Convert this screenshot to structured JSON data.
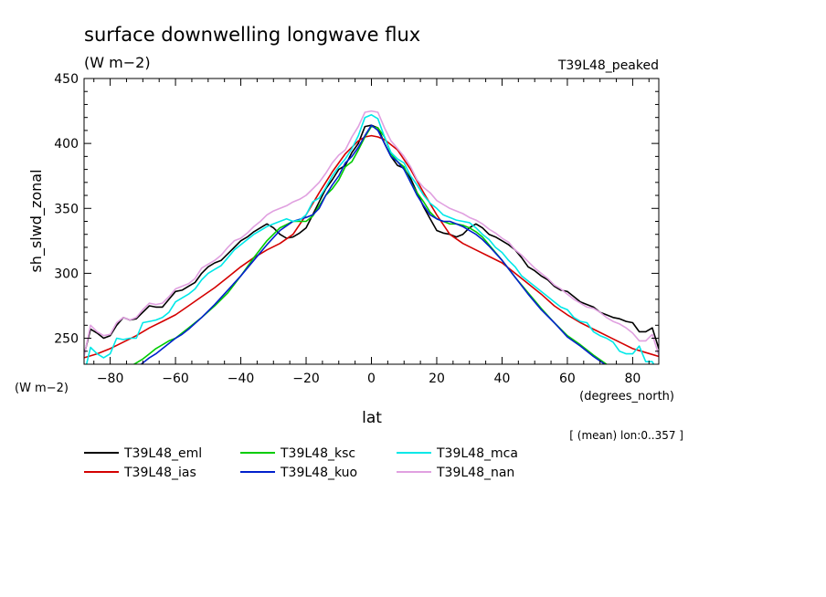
{
  "chart_data": {
    "type": "line",
    "title": "surface downwelling longwave flux",
    "subtitle": "(W m−2)",
    "run_label": "T39L48_peaked",
    "xlabel": "lat",
    "x_units": "(degrees_north)",
    "ylabel": "sh_slwd_zonal",
    "y_units": "(W m−2)",
    "averaging_note": "[ (mean) lon:0..357 ]",
    "xlim": [
      -88,
      88
    ],
    "ylim": [
      230,
      450
    ],
    "x_ticks": [
      -80,
      -60,
      -40,
      -20,
      0,
      20,
      40,
      60,
      80
    ],
    "x_tick_labels": [
      "−80",
      "−60",
      "−40",
      "−20",
      "0",
      "20",
      "40",
      "60",
      "80"
    ],
    "y_ticks": [
      250,
      300,
      350,
      400,
      450
    ],
    "y_tick_labels": [
      "250",
      "300",
      "350",
      "400",
      "450"
    ],
    "grid": false,
    "legend_position": "bottom",
    "series": [
      {
        "name": "T39L48_eml",
        "color": "#000000",
        "x": [
          -88,
          -86,
          -84,
          -82,
          -80,
          -78,
          -76,
          -74,
          -72,
          -70,
          -68,
          -66,
          -64,
          -62,
          -60,
          -58,
          -56,
          -54,
          -52,
          -50,
          -48,
          -46,
          -44,
          -42,
          -40,
          -38,
          -36,
          -34,
          -32,
          -30,
          -28,
          -26,
          -24,
          -22,
          -20,
          -18,
          -16,
          -14,
          -12,
          -10,
          -8,
          -6,
          -4,
          -2,
          0,
          2,
          4,
          6,
          8,
          10,
          12,
          14,
          16,
          18,
          20,
          22,
          24,
          26,
          28,
          30,
          32,
          34,
          36,
          38,
          40,
          42,
          44,
          46,
          48,
          50,
          52,
          54,
          56,
          58,
          60,
          62,
          64,
          66,
          68,
          70,
          72,
          74,
          76,
          78,
          80,
          82,
          84,
          86,
          88
        ],
        "values": [
          237,
          257,
          254,
          250,
          252,
          260,
          266,
          264,
          265,
          270,
          275,
          274,
          274,
          280,
          286,
          287,
          290,
          293,
          300,
          305,
          308,
          310,
          315,
          320,
          325,
          328,
          332,
          335,
          338,
          335,
          330,
          327,
          328,
          331,
          335,
          345,
          355,
          365,
          372,
          380,
          383,
          393,
          400,
          413,
          414,
          412,
          400,
          390,
          383,
          381,
          373,
          362,
          351,
          342,
          333,
          331,
          330,
          328,
          330,
          335,
          338,
          335,
          330,
          328,
          325,
          322,
          318,
          312,
          305,
          302,
          298,
          295,
          290,
          287,
          286,
          282,
          278,
          276,
          274,
          270,
          268,
          266,
          265,
          263,
          262,
          255,
          255,
          258,
          242
        ]
      },
      {
        "name": "T39L48_ias",
        "color": "#d40000",
        "x": [
          -88,
          -84,
          -80,
          -76,
          -72,
          -68,
          -64,
          -60,
          -56,
          -52,
          -48,
          -44,
          -40,
          -36,
          -32,
          -28,
          -24,
          -20,
          -16,
          -12,
          -8,
          -4,
          -2,
          0,
          2,
          4,
          8,
          12,
          16,
          20,
          24,
          28,
          32,
          36,
          40,
          44,
          48,
          52,
          56,
          60,
          64,
          68,
          72,
          76,
          80,
          84,
          88
        ],
        "values": [
          235,
          238,
          242,
          247,
          252,
          258,
          263,
          268,
          275,
          282,
          289,
          297,
          305,
          312,
          318,
          323,
          330,
          345,
          362,
          378,
          392,
          402,
          405,
          406,
          405,
          403,
          395,
          380,
          362,
          345,
          330,
          323,
          318,
          313,
          308,
          300,
          292,
          284,
          275,
          268,
          262,
          257,
          252,
          247,
          242,
          239,
          236
        ]
      },
      {
        "name": "T39L48_ksc",
        "color": "#00cc00",
        "x": [
          -88,
          -86,
          -84,
          -82,
          -80,
          -78,
          -76,
          -74,
          -72,
          -70,
          -68,
          -66,
          -64,
          -62,
          -60,
          -58,
          -56,
          -52,
          -48,
          -44,
          -40,
          -36,
          -32,
          -28,
          -24,
          -20,
          -18,
          -16,
          -14,
          -12,
          -10,
          -8,
          -6,
          -4,
          -2,
          0,
          2,
          4,
          6,
          8,
          10,
          12,
          14,
          16,
          18,
          20,
          22,
          24,
          26,
          28,
          30,
          32,
          34,
          36,
          40,
          44,
          48,
          52,
          56,
          60,
          64,
          68,
          72,
          74,
          76,
          78,
          80,
          82,
          84,
          86,
          88
        ],
        "values": [
          221,
          219,
          220,
          222,
          222,
          224,
          226,
          228,
          231,
          234,
          238,
          242,
          245,
          248,
          250,
          254,
          258,
          266,
          275,
          285,
          298,
          312,
          325,
          335,
          340,
          340,
          344,
          352,
          360,
          365,
          372,
          382,
          386,
          395,
          405,
          413,
          412,
          405,
          392,
          386,
          382,
          370,
          362,
          355,
          347,
          342,
          340,
          338,
          338,
          337,
          335,
          332,
          328,
          322,
          310,
          297,
          285,
          273,
          262,
          252,
          245,
          237,
          230,
          226,
          223,
          221,
          220,
          218,
          218,
          216,
          216
        ]
      },
      {
        "name": "T39L48_kuo",
        "color": "#0020cc",
        "x": [
          -88,
          -86,
          -84,
          -82,
          -80,
          -78,
          -76,
          -74,
          -72,
          -70,
          -68,
          -66,
          -64,
          -62,
          -60,
          -58,
          -56,
          -52,
          -48,
          -44,
          -40,
          -36,
          -32,
          -28,
          -24,
          -20,
          -18,
          -16,
          -14,
          -12,
          -10,
          -8,
          -6,
          -4,
          -2,
          0,
          2,
          4,
          6,
          8,
          10,
          12,
          14,
          16,
          18,
          20,
          22,
          24,
          26,
          28,
          30,
          32,
          34,
          36,
          40,
          44,
          48,
          52,
          56,
          60,
          64,
          68,
          72,
          74,
          76,
          78,
          80,
          82,
          84,
          86,
          88
        ],
        "values": [
          213,
          213,
          214,
          215,
          217,
          219,
          221,
          224,
          227,
          231,
          235,
          238,
          242,
          246,
          250,
          253,
          257,
          266,
          276,
          287,
          298,
          310,
          322,
          333,
          340,
          343,
          345,
          350,
          360,
          368,
          375,
          385,
          390,
          397,
          406,
          414,
          410,
          400,
          390,
          386,
          380,
          370,
          360,
          352,
          345,
          342,
          340,
          340,
          338,
          336,
          333,
          330,
          326,
          321,
          310,
          297,
          284,
          272,
          262,
          251,
          244,
          236,
          229,
          225,
          222,
          218,
          216,
          214,
          212,
          212,
          213
        ]
      },
      {
        "name": "T39L48_mca",
        "color": "#00e8e8",
        "x": [
          -88,
          -86,
          -84,
          -82,
          -80,
          -78,
          -76,
          -74,
          -72,
          -70,
          -68,
          -66,
          -64,
          -62,
          -60,
          -58,
          -56,
          -54,
          -52,
          -50,
          -48,
          -46,
          -44,
          -42,
          -40,
          -38,
          -36,
          -34,
          -32,
          -30,
          -28,
          -26,
          -24,
          -22,
          -20,
          -18,
          -16,
          -14,
          -12,
          -10,
          -8,
          -6,
          -4,
          -2,
          0,
          2,
          4,
          6,
          8,
          10,
          12,
          14,
          16,
          18,
          20,
          22,
          24,
          26,
          28,
          30,
          32,
          34,
          36,
          38,
          40,
          42,
          44,
          46,
          48,
          50,
          52,
          54,
          56,
          58,
          60,
          62,
          64,
          66,
          68,
          70,
          72,
          74,
          76,
          78,
          80,
          82,
          84,
          86,
          88
        ],
        "values": [
          222,
          243,
          238,
          235,
          238,
          250,
          249,
          250,
          250,
          262,
          263,
          264,
          266,
          270,
          278,
          281,
          284,
          288,
          295,
          300,
          303,
          306,
          312,
          318,
          322,
          326,
          330,
          333,
          336,
          338,
          340,
          342,
          340,
          341,
          345,
          355,
          358,
          366,
          375,
          382,
          388,
          396,
          406,
          420,
          422,
          419,
          405,
          393,
          388,
          385,
          375,
          368,
          360,
          354,
          350,
          345,
          343,
          341,
          340,
          339,
          335,
          330,
          326,
          320,
          316,
          310,
          305,
          298,
          294,
          290,
          286,
          282,
          278,
          274,
          272,
          266,
          263,
          262,
          255,
          252,
          250,
          247,
          240,
          238,
          238,
          244,
          232,
          232,
          222
        ]
      },
      {
        "name": "T39L48_nan",
        "color": "#e0a0e0",
        "x": [
          -88,
          -86,
          -84,
          -82,
          -80,
          -78,
          -76,
          -74,
          -72,
          -70,
          -68,
          -66,
          -64,
          -62,
          -60,
          -58,
          -56,
          -54,
          -52,
          -50,
          -48,
          -46,
          -44,
          -42,
          -40,
          -38,
          -36,
          -34,
          -32,
          -30,
          -28,
          -26,
          -24,
          -22,
          -20,
          -18,
          -16,
          -14,
          -12,
          -10,
          -8,
          -6,
          -4,
          -2,
          0,
          2,
          4,
          6,
          8,
          10,
          12,
          14,
          16,
          18,
          20,
          22,
          24,
          26,
          28,
          30,
          32,
          34,
          36,
          38,
          40,
          42,
          44,
          46,
          48,
          50,
          52,
          54,
          56,
          58,
          60,
          62,
          64,
          66,
          68,
          70,
          72,
          74,
          76,
          78,
          80,
          82,
          84,
          86,
          88
        ],
        "values": [
          236,
          260,
          255,
          252,
          253,
          262,
          266,
          264,
          266,
          272,
          277,
          276,
          277,
          282,
          288,
          290,
          292,
          296,
          304,
          307,
          310,
          314,
          320,
          325,
          327,
          331,
          336,
          340,
          345,
          348,
          350,
          352,
          355,
          357,
          360,
          365,
          370,
          377,
          385,
          391,
          395,
          405,
          413,
          424,
          425,
          424,
          412,
          402,
          396,
          390,
          382,
          372,
          366,
          362,
          356,
          353,
          350,
          348,
          346,
          343,
          341,
          338,
          334,
          331,
          327,
          324,
          318,
          314,
          309,
          304,
          300,
          296,
          291,
          288,
          284,
          280,
          277,
          274,
          273,
          270,
          266,
          263,
          261,
          258,
          254,
          248,
          248,
          253,
          237
        ]
      }
    ]
  }
}
